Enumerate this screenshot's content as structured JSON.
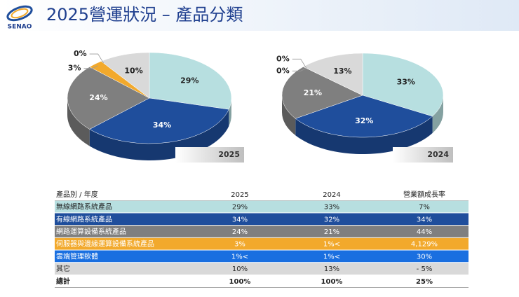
{
  "header": {
    "title": "2025營運狀況 – 產品分類",
    "logo": "SENAO"
  },
  "chart_data": [
    {
      "type": "pie",
      "title": "2025",
      "values": [
        29,
        34,
        24,
        3,
        0,
        10
      ],
      "value_labels": [
        "29%",
        "34%",
        "24%",
        "3%",
        "0%",
        "10%"
      ],
      "colors": [
        "#b7dfe0",
        "#1f4e9c",
        "#7f7f7f",
        "#f2a92c",
        "#1a6fe0",
        "#d9d9d9"
      ]
    },
    {
      "type": "pie",
      "title": "2024",
      "values": [
        33,
        32,
        21,
        0,
        0,
        13
      ],
      "value_labels": [
        "33%",
        "32%",
        "21%",
        "0%",
        "0%",
        "13%"
      ],
      "colors": [
        "#b7dfe0",
        "#1f4e9c",
        "#7f7f7f",
        "#f2a92c",
        "#1a6fe0",
        "#d9d9d9"
      ]
    }
  ],
  "table": {
    "header": [
      "產品別 / 年度",
      "2025",
      "2024",
      "營業額成長率"
    ],
    "rows": [
      [
        "無線網路系統產品",
        "29%",
        "33%",
        "7%"
      ],
      [
        "有線網路系統產品",
        "34%",
        "32%",
        "34%"
      ],
      [
        "網路運算設備系統產品",
        "24%",
        "21%",
        "44%"
      ],
      [
        "伺服器與邊緣運算設備系統產品",
        "3%",
        "1%<",
        "4,129%"
      ],
      [
        "雲端管理軟體",
        "1%<",
        "1%<",
        "30%"
      ],
      [
        "其它",
        "10%",
        "13%",
        "- 5%"
      ],
      [
        "總計",
        "100%",
        "100%",
        "25%"
      ]
    ]
  }
}
